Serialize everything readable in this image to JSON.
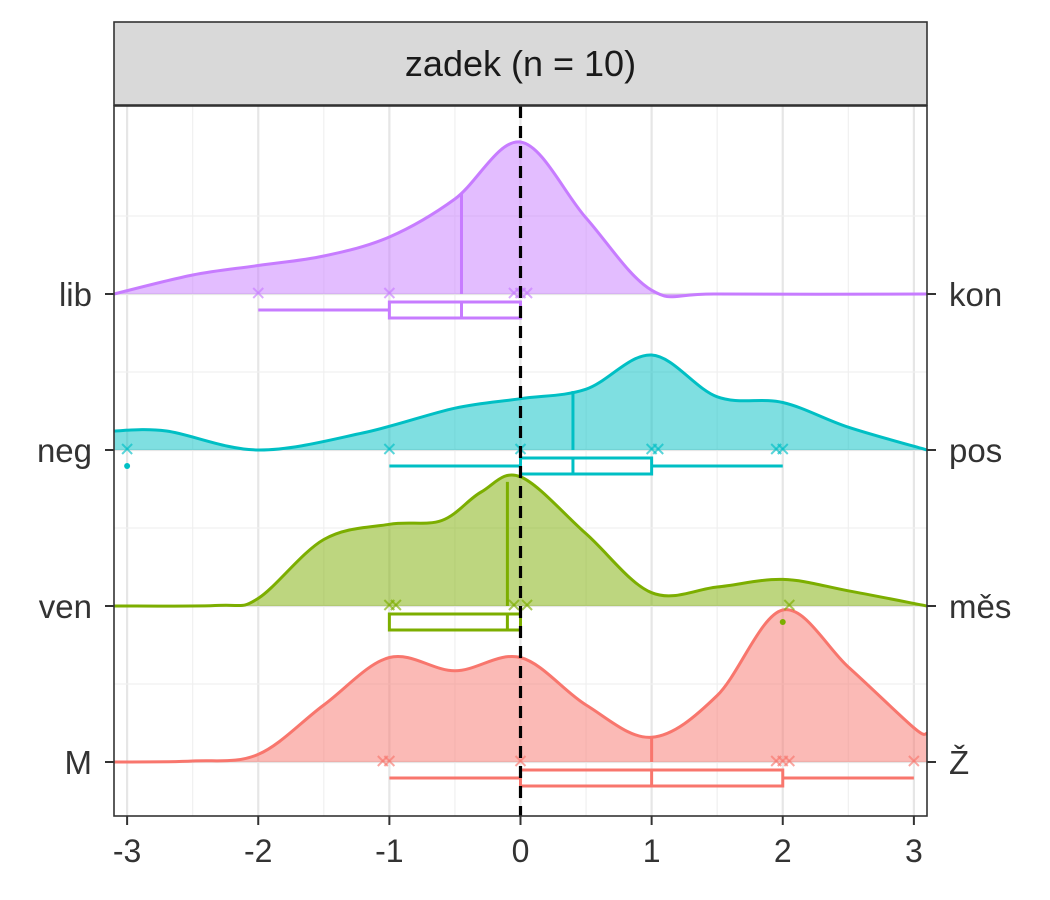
{
  "chart_data": {
    "type": "ridgeline-density",
    "title": "zadek (n = 10)",
    "xlim": [
      -3.1,
      3.1
    ],
    "x_ticks": [
      -3,
      -2,
      -1,
      0,
      1,
      2,
      3
    ],
    "x_tick_labels": [
      "-3",
      "-2",
      "-1",
      "0",
      "1",
      "2",
      "3"
    ],
    "grid": true,
    "reference_line": {
      "x": 0,
      "style": "dashed",
      "color": "#000000"
    },
    "series": [
      {
        "left_label": "M",
        "right_label": "Ž",
        "color": "#F8766D",
        "density_peak_height": 0.8,
        "density": [
          [
            -3.1,
            0
          ],
          [
            -2.5,
            0.005
          ],
          [
            -2.0,
            0.04
          ],
          [
            -1.5,
            0.3
          ],
          [
            -1.0,
            0.55
          ],
          [
            -0.5,
            0.48
          ],
          [
            0.0,
            0.55
          ],
          [
            0.5,
            0.3
          ],
          [
            1.0,
            0.13
          ],
          [
            1.5,
            0.35
          ],
          [
            2.0,
            0.8
          ],
          [
            2.5,
            0.5
          ],
          [
            3.0,
            0.18
          ],
          [
            3.1,
            0.15
          ]
        ],
        "median": 1.0,
        "points": [
          -1.05,
          -1.0,
          0.0,
          1.95,
          2.0,
          2.05,
          3.0
        ],
        "box": {
          "q1": 0.0,
          "q3": 2.0,
          "min": -1.0,
          "max": 3.0,
          "outliers": []
        }
      },
      {
        "left_label": "ven",
        "right_label": "měs",
        "color": "#7CAE00",
        "density_peak_height": 0.68,
        "density": [
          [
            -3.1,
            0
          ],
          [
            -2.3,
            0.003
          ],
          [
            -2.0,
            0.04
          ],
          [
            -1.5,
            0.35
          ],
          [
            -1.0,
            0.43
          ],
          [
            -0.6,
            0.45
          ],
          [
            -0.3,
            0.6
          ],
          [
            0.0,
            0.68
          ],
          [
            0.5,
            0.38
          ],
          [
            1.0,
            0.07
          ],
          [
            1.5,
            0.1
          ],
          [
            2.0,
            0.14
          ],
          [
            2.5,
            0.08
          ],
          [
            3.1,
            0
          ]
        ],
        "median": -0.1,
        "points": [
          -1.0,
          -0.95,
          -0.05,
          0.05,
          2.05
        ],
        "box": {
          "q1": -1.0,
          "q3": 0.0,
          "min": -1.0,
          "max": 0.0,
          "outliers": [
            2.0
          ]
        }
      },
      {
        "left_label": "neg",
        "right_label": "pos",
        "color": "#00BFC4",
        "density_peak_height": 0.5,
        "density": [
          [
            -3.1,
            0.1
          ],
          [
            -2.7,
            0.1
          ],
          [
            -2.0,
            0.0
          ],
          [
            -1.2,
            0.09
          ],
          [
            -0.5,
            0.22
          ],
          [
            0.0,
            0.27
          ],
          [
            0.5,
            0.32
          ],
          [
            1.0,
            0.5
          ],
          [
            1.5,
            0.28
          ],
          [
            2.0,
            0.25
          ],
          [
            2.5,
            0.12
          ],
          [
            3.1,
            0.0
          ]
        ],
        "median": 0.4,
        "points": [
          -3.0,
          -1.0,
          0.0,
          1.0,
          1.05,
          1.95,
          2.0
        ],
        "box": {
          "q1": 0.0,
          "q3": 1.0,
          "min": -1.0,
          "max": 2.0,
          "outliers": [
            -3.0
          ]
        }
      },
      {
        "left_label": "lib",
        "right_label": "kon",
        "color": "#C77CFF",
        "density_peak_height": 0.8,
        "density": [
          [
            -3.1,
            0
          ],
          [
            -2.5,
            0.1
          ],
          [
            -2.0,
            0.15
          ],
          [
            -1.5,
            0.2
          ],
          [
            -1.0,
            0.3
          ],
          [
            -0.5,
            0.5
          ],
          [
            0.0,
            0.8
          ],
          [
            0.5,
            0.4
          ],
          [
            1.0,
            0.02
          ],
          [
            1.5,
            0.0
          ],
          [
            3.1,
            0
          ]
        ],
        "median": -0.45,
        "points": [
          -2.0,
          -1.0,
          -0.05,
          0.0,
          0.05
        ],
        "box": {
          "q1": -1.0,
          "q3": 0.0,
          "min": -2.0,
          "max": 0.0,
          "outliers": []
        }
      }
    ]
  }
}
